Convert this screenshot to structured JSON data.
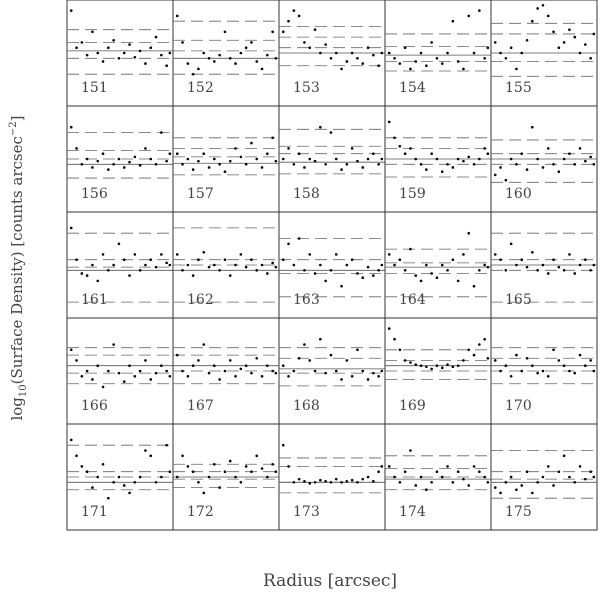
{
  "chart_data": {
    "type": "scatter",
    "y_label": {
      "pre": "log",
      "sub": "10",
      "mid": "(Surface Density) [counts arcsec",
      "sup": "−2",
      "post": "]"
    },
    "x_label": "Radius [arcsec]",
    "xlim": [
      0,
      1
    ],
    "ylim": [
      0,
      1
    ],
    "x": [
      0.04,
      0.09,
      0.14,
      0.19,
      0.24,
      0.29,
      0.34,
      0.39,
      0.44,
      0.49,
      0.54,
      0.59,
      0.64,
      0.69,
      0.74,
      0.79,
      0.84,
      0.89,
      0.94,
      0.97
    ],
    "color": "#000000",
    "panels": [
      {
        "label": "151",
        "solid": 0.52,
        "dashed": [
          0.3,
          0.45,
          0.6,
          0.72
        ],
        "y": [
          0.9,
          0.55,
          0.6,
          0.48,
          0.7,
          0.5,
          0.42,
          0.55,
          0.62,
          0.45,
          0.5,
          0.58,
          0.46,
          0.52,
          0.4,
          0.55,
          0.65,
          0.48,
          0.38,
          0.5
        ]
      },
      {
        "label": "152",
        "solid": 0.45,
        "dashed": [
          0.3,
          0.52,
          0.62,
          0.8
        ],
        "y": [
          0.85,
          0.6,
          0.4,
          0.3,
          0.35,
          0.5,
          0.45,
          0.42,
          0.48,
          0.7,
          0.45,
          0.4,
          0.5,
          0.55,
          0.6,
          0.42,
          0.35,
          0.48,
          0.7,
          0.45
        ]
      },
      {
        "label": "153",
        "solid": 0.5,
        "dashed": [
          0.38,
          0.55,
          0.65,
          0.75
        ],
        "y": [
          0.7,
          0.8,
          0.9,
          0.85,
          0.6,
          0.55,
          0.72,
          0.5,
          0.58,
          0.45,
          0.5,
          0.35,
          0.42,
          0.5,
          0.45,
          0.4,
          0.55,
          0.48,
          0.38,
          0.5
        ]
      },
      {
        "label": "154",
        "solid": 0.48,
        "dashed": [
          0.33,
          0.42,
          0.56,
          0.68
        ],
        "y": [
          0.5,
          0.45,
          0.4,
          0.55,
          0.35,
          0.42,
          0.5,
          0.38,
          0.6,
          0.45,
          0.4,
          0.5,
          0.8,
          0.42,
          0.35,
          0.85,
          0.5,
          0.9,
          0.45,
          0.55
        ]
      },
      {
        "label": "155",
        "solid": 0.5,
        "dashed": [
          0.28,
          0.42,
          0.68,
          0.78
        ],
        "y": [
          0.6,
          0.5,
          0.45,
          0.55,
          0.35,
          0.5,
          0.62,
          0.8,
          0.92,
          0.95,
          0.85,
          0.7,
          0.55,
          0.6,
          0.72,
          0.65,
          0.5,
          0.58,
          0.45,
          0.68
        ]
      },
      {
        "label": "156",
        "solid": 0.45,
        "dashed": [
          0.32,
          0.5,
          0.58,
          0.75
        ],
        "y": [
          0.8,
          0.6,
          0.45,
          0.5,
          0.42,
          0.48,
          0.55,
          0.4,
          0.45,
          0.5,
          0.42,
          0.47,
          0.52,
          0.44,
          0.6,
          0.5,
          0.45,
          0.75,
          0.48,
          0.55
        ]
      },
      {
        "label": "157",
        "solid": 0.46,
        "dashed": [
          0.35,
          0.52,
          0.6,
          0.7
        ],
        "y": [
          0.55,
          0.45,
          0.5,
          0.4,
          0.48,
          0.55,
          0.42,
          0.5,
          0.45,
          0.38,
          0.48,
          0.6,
          0.52,
          0.45,
          0.65,
          0.5,
          0.42,
          0.55,
          0.7,
          0.48
        ]
      },
      {
        "label": "158",
        "solid": 0.47,
        "dashed": [
          0.36,
          0.55,
          0.62,
          0.78
        ],
        "y": [
          0.5,
          0.6,
          0.45,
          0.55,
          0.42,
          0.5,
          0.48,
          0.8,
          0.45,
          0.75,
          0.5,
          0.4,
          0.45,
          0.6,
          0.48,
          0.42,
          0.5,
          0.55,
          0.45,
          0.5
        ]
      },
      {
        "label": "159",
        "solid": 0.5,
        "dashed": [
          0.33,
          0.45,
          0.6,
          0.7
        ],
        "y": [
          0.85,
          0.7,
          0.62,
          0.55,
          0.6,
          0.5,
          0.45,
          0.4,
          0.55,
          0.5,
          0.38,
          0.45,
          0.42,
          0.5,
          0.48,
          0.52,
          0.45,
          0.5,
          0.6,
          0.55
        ]
      },
      {
        "label": "160",
        "solid": 0.5,
        "dashed": [
          0.28,
          0.45,
          0.55,
          0.68
        ],
        "y": [
          0.35,
          0.42,
          0.3,
          0.5,
          0.45,
          0.55,
          0.4,
          0.8,
          0.5,
          0.42,
          0.6,
          0.45,
          0.38,
          0.5,
          0.55,
          0.45,
          0.6,
          0.48,
          0.52,
          0.45
        ]
      },
      {
        "label": "161",
        "solid": 0.45,
        "dashed": [
          0.15,
          0.48,
          0.55,
          0.8
        ],
        "y": [
          0.85,
          0.55,
          0.42,
          0.4,
          0.5,
          0.35,
          0.6,
          0.45,
          0.5,
          0.7,
          0.55,
          0.4,
          0.6,
          0.45,
          0.5,
          0.55,
          0.48,
          0.6,
          0.52,
          0.5
        ]
      },
      {
        "label": "162",
        "solid": 0.45,
        "dashed": [
          0.15,
          0.5,
          0.55,
          0.85
        ],
        "y": [
          0.6,
          0.45,
          0.5,
          0.4,
          0.55,
          0.62,
          0.48,
          0.5,
          0.45,
          0.55,
          0.4,
          0.5,
          0.6,
          0.48,
          0.55,
          0.45,
          0.5,
          0.42,
          0.52,
          0.48
        ]
      },
      {
        "label": "163",
        "solid": 0.45,
        "dashed": [
          0.2,
          0.42,
          0.55,
          0.75
        ],
        "y": [
          0.55,
          0.7,
          0.5,
          0.75,
          0.45,
          0.6,
          0.42,
          0.5,
          0.35,
          0.45,
          0.6,
          0.3,
          0.5,
          0.55,
          0.42,
          0.38,
          0.48,
          0.4,
          0.45,
          0.5
        ]
      },
      {
        "label": "164",
        "solid": 0.48,
        "dashed": [
          0.2,
          0.42,
          0.52,
          0.65
        ],
        "y": [
          0.6,
          0.5,
          0.55,
          0.45,
          0.65,
          0.4,
          0.35,
          0.5,
          0.42,
          0.38,
          0.5,
          0.45,
          0.55,
          0.35,
          0.6,
          0.8,
          0.3,
          0.45,
          0.5,
          0.48
        ]
      },
      {
        "label": "165",
        "solid": 0.5,
        "dashed": [
          0.15,
          0.45,
          0.55,
          0.8
        ],
        "y": [
          0.6,
          0.55,
          0.45,
          0.7,
          0.5,
          0.55,
          0.48,
          0.62,
          0.45,
          0.5,
          0.42,
          0.55,
          0.48,
          0.45,
          0.6,
          0.42,
          0.5,
          0.55,
          0.45,
          0.5
        ]
      },
      {
        "label": "166",
        "solid": 0.55,
        "dashed": [
          0.38,
          0.48,
          0.65,
          0.72
        ],
        "y": [
          0.7,
          0.6,
          0.45,
          0.5,
          0.42,
          0.55,
          0.35,
          0.5,
          0.75,
          0.48,
          0.4,
          0.55,
          0.45,
          0.5,
          0.6,
          0.42,
          0.48,
          0.55,
          0.5,
          0.45
        ]
      },
      {
        "label": "167",
        "solid": 0.55,
        "dashed": [
          0.38,
          0.5,
          0.65,
          0.72
        ],
        "y": [
          0.65,
          0.5,
          0.45,
          0.55,
          0.6,
          0.75,
          0.48,
          0.55,
          0.42,
          0.5,
          0.6,
          0.45,
          0.52,
          0.55,
          0.48,
          0.62,
          0.45,
          0.55,
          0.5,
          0.48
        ]
      },
      {
        "label": "168",
        "solid": 0.52,
        "dashed": [
          0.36,
          0.48,
          0.62,
          0.72
        ],
        "y": [
          0.55,
          0.45,
          0.5,
          0.62,
          0.75,
          0.6,
          0.5,
          0.8,
          0.48,
          0.65,
          0.5,
          0.42,
          0.6,
          0.45,
          0.7,
          0.5,
          0.42,
          0.48,
          0.45,
          0.5
        ]
      },
      {
        "label": "169",
        "solid": 0.55,
        "dashed": [
          0.42,
          0.5,
          0.6,
          0.7
        ],
        "y": [
          0.9,
          0.8,
          0.7,
          0.6,
          0.58,
          0.56,
          0.55,
          0.54,
          0.52,
          0.55,
          0.53,
          0.56,
          0.54,
          0.55,
          0.6,
          0.7,
          0.65,
          0.75,
          0.8,
          0.62
        ]
      },
      {
        "label": "170",
        "solid": 0.55,
        "dashed": [
          0.38,
          0.5,
          0.62,
          0.72
        ],
        "y": [
          0.6,
          0.5,
          0.55,
          0.45,
          0.65,
          0.5,
          0.62,
          0.55,
          0.48,
          0.5,
          0.45,
          0.7,
          0.6,
          0.55,
          0.5,
          0.48,
          0.65,
          0.55,
          0.6,
          0.5
        ]
      },
      {
        "label": "171",
        "solid": 0.45,
        "dashed": [
          0.38,
          0.5,
          0.55,
          0.8
        ],
        "y": [
          0.85,
          0.7,
          0.6,
          0.55,
          0.4,
          0.5,
          0.62,
          0.3,
          0.45,
          0.5,
          0.42,
          0.35,
          0.45,
          0.5,
          0.75,
          0.7,
          0.45,
          0.5,
          0.8,
          0.55
        ]
      },
      {
        "label": "172",
        "solid": 0.5,
        "dashed": [
          0.4,
          0.48,
          0.55,
          0.62
        ],
        "y": [
          0.5,
          0.7,
          0.6,
          0.55,
          0.45,
          0.35,
          0.5,
          0.62,
          0.4,
          0.55,
          0.65,
          0.5,
          0.45,
          0.6,
          0.55,
          0.7,
          0.58,
          0.5,
          0.62,
          0.55
        ]
      },
      {
        "label": "173",
        "solid": 0.45,
        "dashed": [
          0.35,
          0.45,
          0.6,
          0.68
        ],
        "y": [
          0.8,
          0.6,
          0.45,
          0.48,
          0.46,
          0.44,
          0.45,
          0.47,
          0.46,
          0.45,
          0.48,
          0.45,
          0.46,
          0.47,
          0.45,
          0.48,
          0.5,
          0.46,
          0.55,
          0.6
        ]
      },
      {
        "label": "174",
        "solid": 0.48,
        "dashed": [
          0.38,
          0.5,
          0.58,
          0.7
        ],
        "y": [
          0.6,
          0.5,
          0.45,
          0.55,
          0.75,
          0.42,
          0.5,
          0.38,
          0.45,
          0.55,
          0.5,
          0.6,
          0.45,
          0.55,
          0.48,
          0.42,
          0.6,
          0.55,
          0.5,
          0.45
        ]
      },
      {
        "label": "175",
        "solid": 0.45,
        "dashed": [
          0.3,
          0.48,
          0.55,
          0.75
        ],
        "y": [
          0.4,
          0.35,
          0.45,
          0.5,
          0.38,
          0.42,
          0.55,
          0.35,
          0.45,
          0.5,
          0.6,
          0.42,
          0.55,
          0.7,
          0.5,
          0.45,
          0.6,
          0.48,
          0.55,
          0.5
        ]
      }
    ]
  }
}
